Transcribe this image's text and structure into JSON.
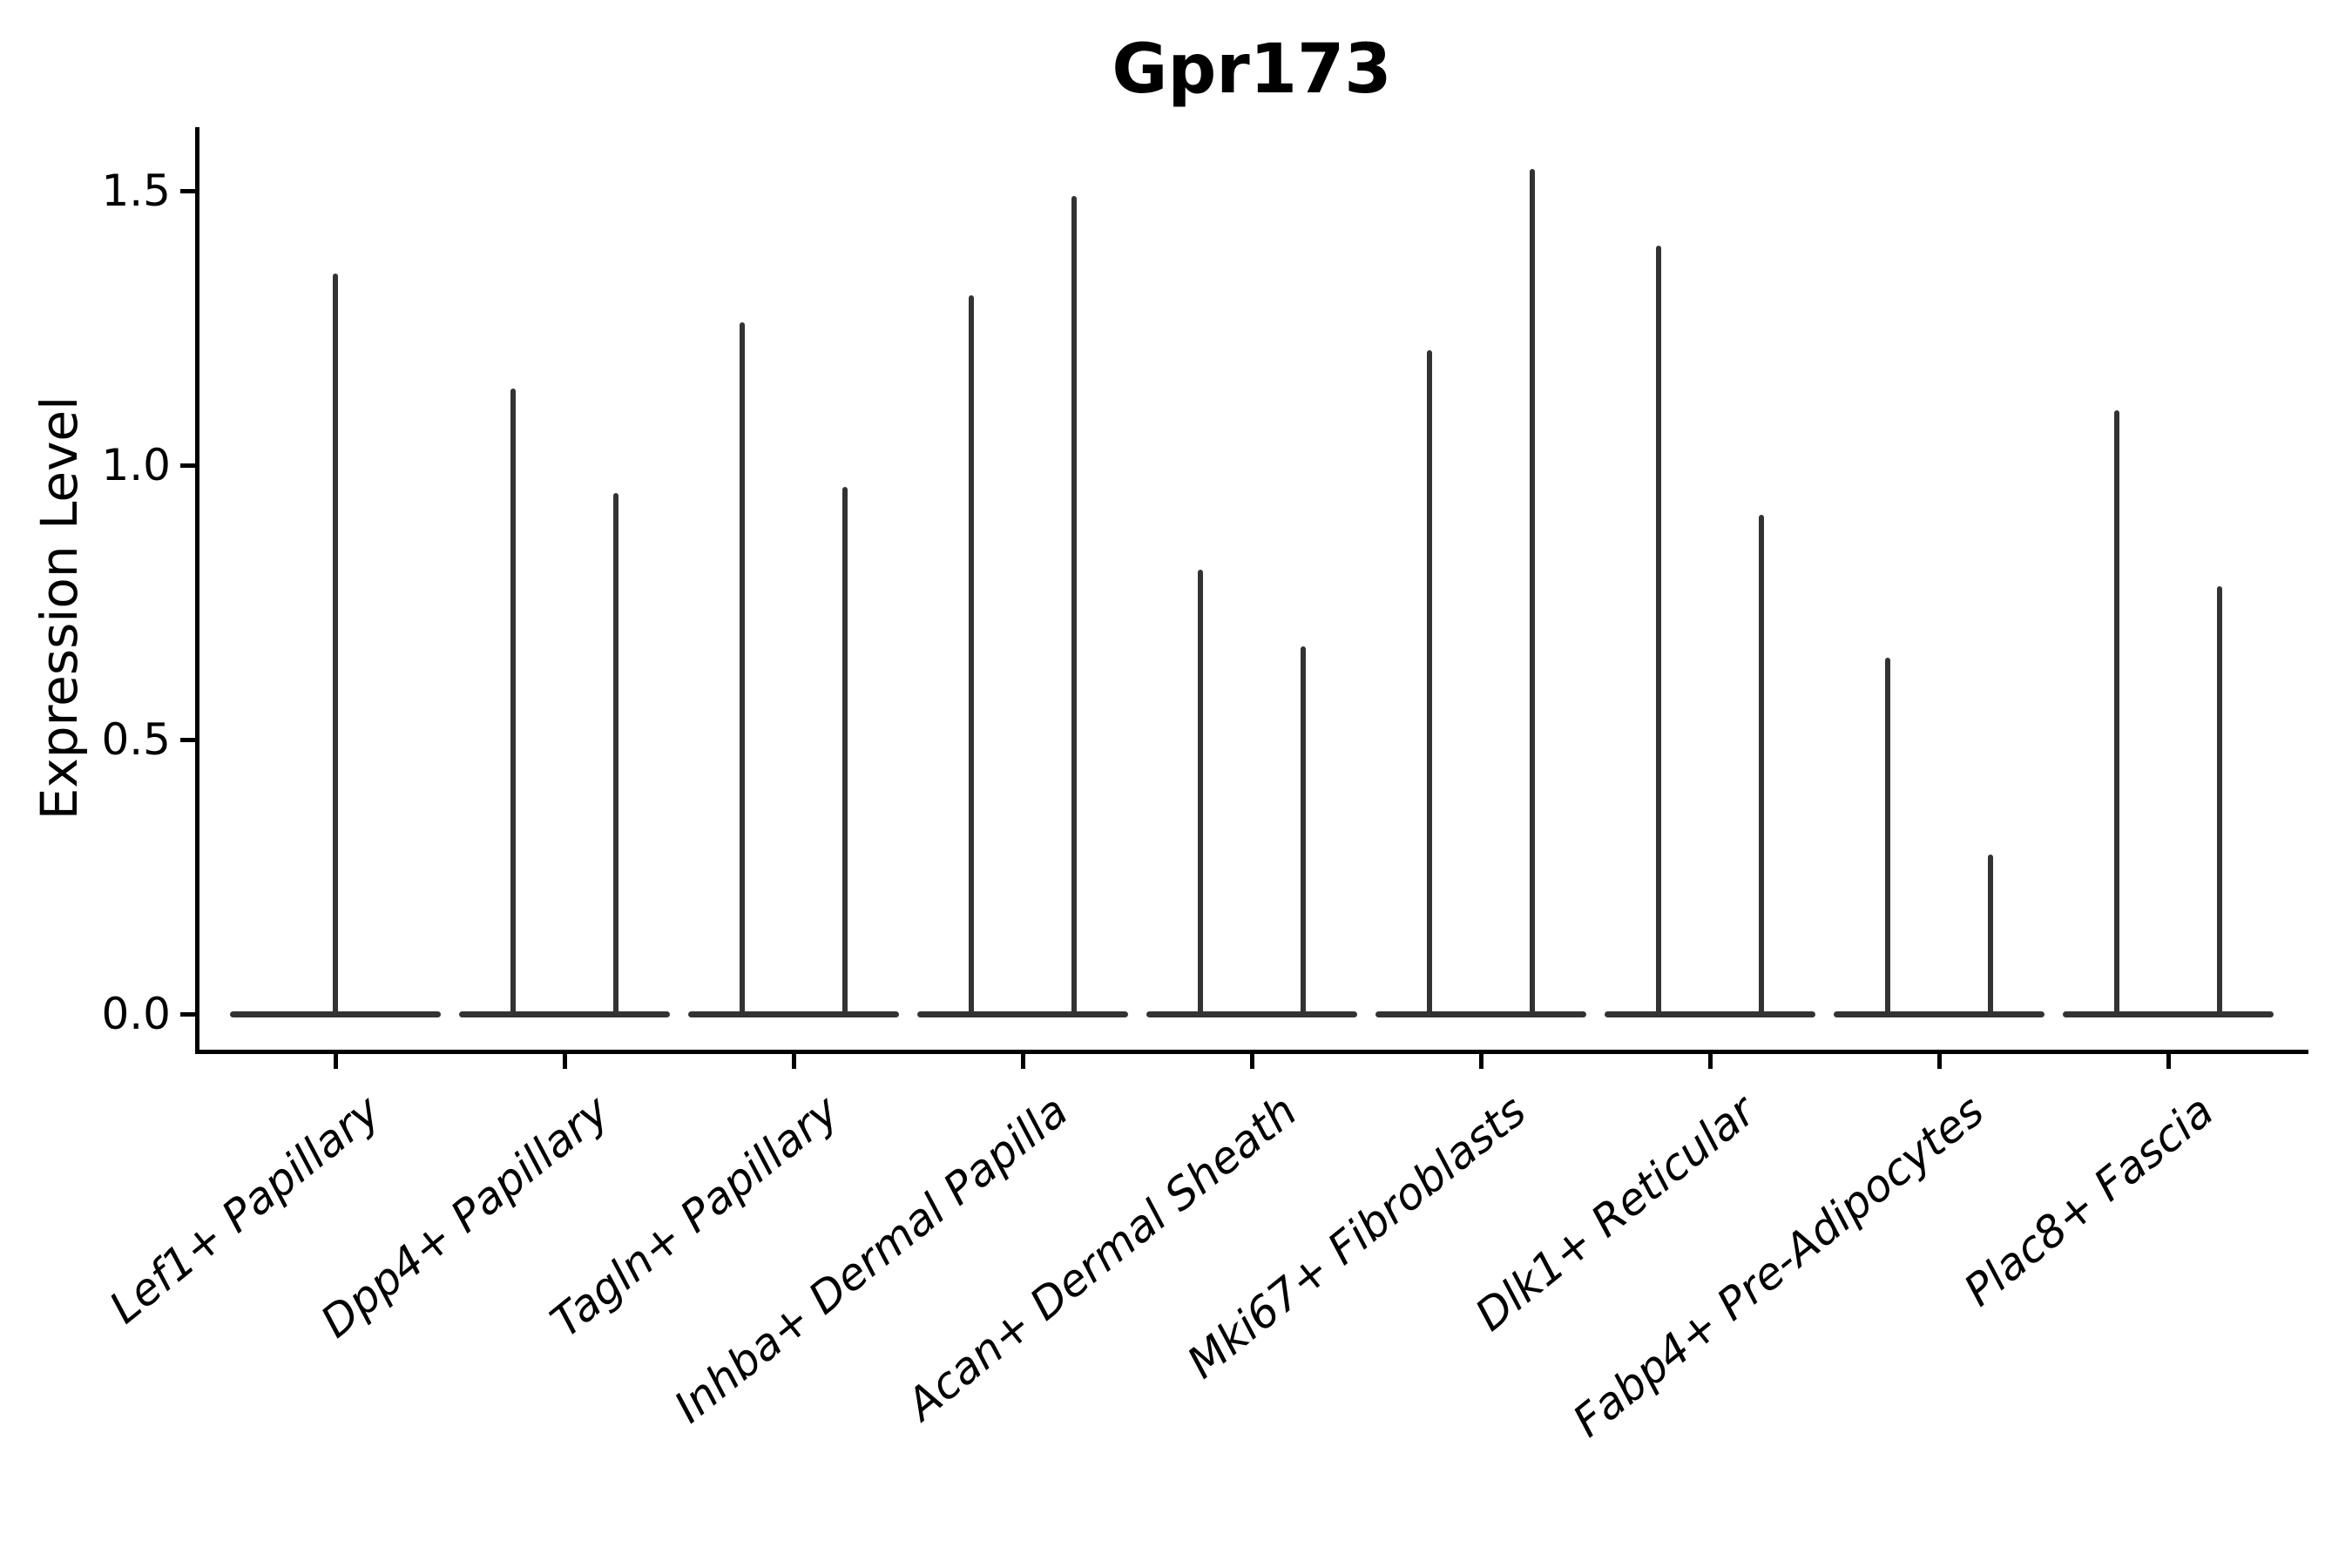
{
  "chart_data": {
    "type": "violin",
    "title": "Gpr173",
    "xlabel": "",
    "ylabel": "Expression Level",
    "yticks": [
      {
        "value": 0.0,
        "label": "0.0"
      },
      {
        "value": 0.5,
        "label": "0.5"
      },
      {
        "value": 1.0,
        "label": "1.0"
      },
      {
        "value": 1.5,
        "label": "1.5"
      }
    ],
    "ylim": [
      -0.07,
      1.62
    ],
    "grid": false,
    "legend": "none",
    "violin_shape_note": "Each violin is collapsed to a thin vertical spike rising from a wide flat base at expression 0 (zero-inflated data); spike top marks the maximum expression value.",
    "categories": [
      "Lef1+ Papillary",
      "Dpp4+ Papillary",
      "Tagln+ Papillary",
      "Inhba+ Dermal Papilla",
      "Acan+ Dermal Sheath",
      "Mki67+ Fibroblasts",
      "Dlk1+ Reticular",
      "Fabp4+ Pre-Adipocytes",
      "Plac8+ Fascia"
    ],
    "series": [
      {
        "category": "Lef1+ Papillary",
        "violin_max_values": [
          1.35
        ]
      },
      {
        "category": "Dpp4+ Papillary",
        "violin_max_values": [
          1.14,
          0.95
        ]
      },
      {
        "category": "Tagln+ Papillary",
        "violin_max_values": [
          1.26,
          0.96
        ]
      },
      {
        "category": "Inhba+ Dermal Papilla",
        "violin_max_values": [
          1.31,
          1.49
        ]
      },
      {
        "category": "Acan+ Dermal Sheath",
        "violin_max_values": [
          0.81,
          0.67
        ]
      },
      {
        "category": "Mki67+ Fibroblasts",
        "violin_max_values": [
          1.21,
          1.54
        ]
      },
      {
        "category": "Dlk1+ Reticular",
        "violin_max_values": [
          1.4,
          0.91
        ]
      },
      {
        "category": "Fabp4+ Pre-Adipocytes",
        "violin_max_values": [
          0.65,
          0.29
        ]
      },
      {
        "category": "Plac8+ Fascia",
        "violin_max_values": [
          1.1,
          0.78
        ]
      }
    ],
    "colors": {
      "violin": "#333333",
      "axis": "#000000",
      "text": "#000000",
      "background": "#ffffff"
    }
  }
}
